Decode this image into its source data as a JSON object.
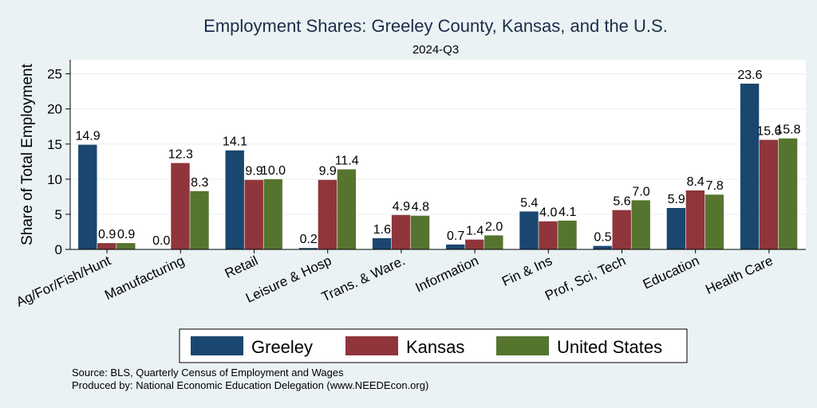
{
  "chart_data": {
    "type": "bar",
    "title": "Employment Shares: Greeley County, Kansas, and the U.S.",
    "subtitle": "2024-Q3",
    "xlabel": "",
    "ylabel": "Share of Total Employment",
    "ylim": [
      0,
      27
    ],
    "yticks": [
      0,
      5,
      10,
      15,
      20,
      25
    ],
    "grid": true,
    "legend_position": "bottom",
    "categories": [
      "Ag/For/Fish/Hunt",
      "Manufacturing",
      "Retail",
      "Leisure & Hosp",
      "Trans. & Ware.",
      "Information",
      "Fin & Ins",
      "Prof, Sci, Tech",
      "Education",
      "Health Care"
    ],
    "series": [
      {
        "name": "Greeley",
        "color": "#1a476f",
        "values": [
          14.9,
          0.0,
          14.1,
          0.2,
          1.6,
          0.7,
          5.4,
          0.5,
          5.9,
          23.6
        ]
      },
      {
        "name": "Kansas",
        "color": "#90353b",
        "values": [
          0.9,
          12.3,
          9.9,
          9.9,
          4.9,
          1.4,
          4.0,
          5.6,
          8.4,
          15.6
        ]
      },
      {
        "name": "United States",
        "color": "#55752f",
        "values": [
          0.9,
          8.3,
          10.0,
          11.4,
          4.8,
          2.0,
          4.1,
          7.0,
          7.8,
          15.8
        ]
      }
    ]
  },
  "footer": {
    "source": "Source: BLS, Quarterly Census of Employment and Wages",
    "produced": "Produced by: National Economic Education Delegation (www.NEEDEcon.org)"
  }
}
